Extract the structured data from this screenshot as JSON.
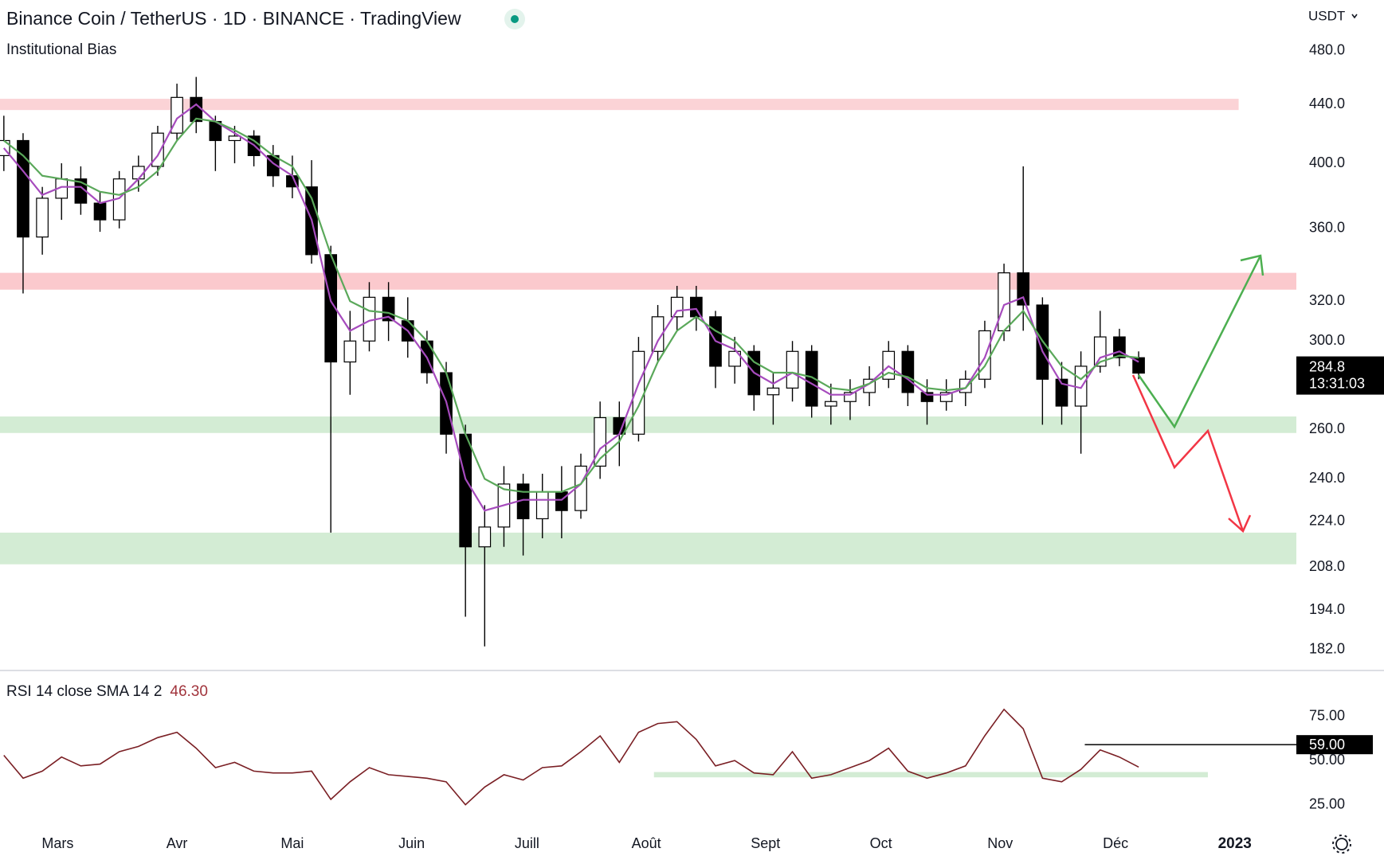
{
  "chart_data": [
    {
      "type": "candlestick",
      "title": "Binance Coin / TetherUS · 1D · BINANCE · TradingView",
      "subtitle": "Institutional Bias",
      "currency": "USDT",
      "log_scale": true,
      "x": [
        1,
        6,
        11,
        16,
        21,
        26,
        31,
        36,
        41,
        46,
        51,
        56,
        61,
        66,
        71,
        76,
        81,
        86,
        91,
        96,
        101,
        106,
        111,
        116,
        121,
        126,
        131,
        136,
        141,
        146,
        151,
        156,
        161,
        166,
        171,
        176,
        181,
        186,
        191,
        196,
        201,
        206,
        211,
        216,
        221,
        226,
        231,
        236,
        241,
        246,
        251,
        256,
        261,
        266,
        271,
        276,
        281,
        286,
        291,
        296
      ],
      "open": [
        405,
        415,
        355,
        378,
        390,
        375,
        365,
        390,
        398,
        420,
        445,
        428,
        415,
        418,
        405,
        392,
        385,
        345,
        290,
        300,
        322,
        310,
        300,
        285,
        258,
        215,
        222,
        238,
        225,
        235,
        228,
        245,
        265,
        258,
        295,
        312,
        322,
        312,
        288,
        295,
        275,
        278,
        295,
        270,
        272,
        276,
        282,
        295,
        276,
        272,
        276,
        282,
        305,
        335,
        318,
        282,
        270,
        288,
        302,
        292
      ],
      "high": [
        432,
        420,
        385,
        400,
        398,
        382,
        395,
        405,
        425,
        455,
        460,
        432,
        425,
        422,
        412,
        405,
        402,
        350,
        315,
        330,
        330,
        322,
        305,
        290,
        262,
        230,
        245,
        242,
        242,
        245,
        250,
        272,
        272,
        302,
        318,
        328,
        328,
        315,
        302,
        298,
        285,
        300,
        298,
        280,
        282,
        288,
        300,
        298,
        282,
        282,
        286,
        310,
        340,
        398,
        322,
        290,
        295,
        315,
        306,
        295
      ],
      "low": [
        395,
        324,
        345,
        365,
        368,
        358,
        360,
        382,
        392,
        415,
        420,
        395,
        400,
        398,
        385,
        378,
        340,
        220,
        275,
        295,
        300,
        292,
        280,
        250,
        192,
        183,
        215,
        212,
        218,
        218,
        225,
        240,
        245,
        255,
        290,
        305,
        305,
        278,
        280,
        268,
        262,
        272,
        265,
        262,
        264,
        270,
        278,
        270,
        262,
        268,
        270,
        278,
        300,
        305,
        262,
        262,
        250,
        285,
        288,
        282
      ],
      "close": [
        415,
        355,
        378,
        390,
        375,
        365,
        390,
        398,
        420,
        445,
        428,
        415,
        418,
        405,
        392,
        385,
        345,
        290,
        300,
        322,
        310,
        300,
        285,
        258,
        215,
        222,
        238,
        225,
        235,
        228,
        245,
        265,
        258,
        295,
        312,
        322,
        312,
        288,
        295,
        275,
        278,
        295,
        270,
        272,
        276,
        282,
        295,
        276,
        272,
        276,
        282,
        305,
        335,
        318,
        282,
        270,
        288,
        302,
        292,
        284.8
      ],
      "up_color": "#ffffff",
      "down_color": "#000000",
      "series": [
        {
          "color": "#a64bbd",
          "values": [
            410,
            395,
            380,
            385,
            385,
            375,
            378,
            390,
            405,
            430,
            440,
            428,
            420,
            412,
            400,
            392,
            365,
            320,
            305,
            310,
            312,
            305,
            292,
            272,
            240,
            228,
            230,
            232,
            232,
            232,
            238,
            252,
            258,
            280,
            300,
            315,
            316,
            300,
            296,
            285,
            280,
            285,
            280,
            275,
            275,
            280,
            288,
            282,
            275,
            275,
            278,
            292,
            318,
            322,
            295,
            280,
            278,
            292,
            295,
            290
          ]
        },
        {
          "color": "#5aa85a",
          "values": [
            415,
            405,
            392,
            390,
            388,
            382,
            380,
            385,
            395,
            415,
            430,
            428,
            422,
            415,
            405,
            398,
            378,
            345,
            320,
            315,
            314,
            310,
            300,
            285,
            258,
            240,
            236,
            235,
            235,
            235,
            238,
            248,
            255,
            270,
            290,
            305,
            312,
            305,
            300,
            290,
            285,
            285,
            283,
            278,
            277,
            280,
            285,
            283,
            278,
            277,
            278,
            288,
            305,
            315,
            300,
            288,
            282,
            290,
            293,
            292
          ]
        }
      ],
      "zones": [
        {
          "low": 436,
          "high": 444,
          "color": "#fbd3d6",
          "x_end": 322
        },
        {
          "low": 326,
          "high": 335,
          "color": "#fbc9cd"
        },
        {
          "low": 258.5,
          "high": 265.5,
          "color": "#d3ecd4"
        },
        {
          "low": 209,
          "high": 220,
          "color": "#d3ecd4"
        }
      ],
      "last_price": {
        "value": 284.8,
        "label": "284.8"
      },
      "countdown": "13:31:03",
      "xlim": [
        0,
        337
      ],
      "xticks": [
        {
          "value": 15,
          "label": "Mars"
        },
        {
          "value": 46,
          "label": "Avr"
        },
        {
          "value": 76,
          "label": "Mai"
        },
        {
          "value": 107,
          "label": "Juin"
        },
        {
          "value": 137,
          "label": "Juill"
        },
        {
          "value": 168,
          "label": "Août"
        },
        {
          "value": 199,
          "label": "Sept"
        },
        {
          "value": 229,
          "label": "Oct"
        },
        {
          "value": 260,
          "label": "Nov"
        },
        {
          "value": 290,
          "label": "Déc"
        },
        {
          "value": 321,
          "label": "2023",
          "bold": true
        }
      ],
      "ylim": [
        176,
        521
      ],
      "yticks": [
        {
          "value": 480,
          "label": "480.0"
        },
        {
          "value": 440,
          "label": "440.0"
        },
        {
          "value": 400,
          "label": "400.0"
        },
        {
          "value": 360,
          "label": "360.0"
        },
        {
          "value": 320,
          "label": "320.0"
        },
        {
          "value": 300,
          "label": "300.0"
        },
        {
          "value": 260,
          "label": "260.0"
        },
        {
          "value": 240,
          "label": "240.0"
        },
        {
          "value": 224,
          "label": "224.0"
        },
        {
          "value": 208,
          "label": "208.0"
        },
        {
          "value": 194,
          "label": "194.0"
        },
        {
          "value": 182,
          "label": "182.0"
        }
      ]
    },
    {
      "type": "line",
      "title": "RSI 14 close SMA 14 2",
      "current": {
        "value": 46.3,
        "label": "46.30"
      },
      "x": [
        1,
        6,
        11,
        16,
        21,
        26,
        31,
        36,
        41,
        46,
        51,
        56,
        61,
        66,
        71,
        76,
        81,
        86,
        91,
        96,
        101,
        106,
        111,
        116,
        121,
        126,
        131,
        136,
        141,
        146,
        151,
        156,
        161,
        166,
        171,
        176,
        181,
        186,
        191,
        196,
        201,
        206,
        211,
        216,
        221,
        226,
        231,
        236,
        241,
        246,
        251,
        256,
        261,
        266,
        271,
        276,
        281,
        286,
        291,
        296
      ],
      "series": [
        {
          "color": "#7a1f24",
          "values": [
            53,
            40,
            44,
            52,
            47,
            48,
            55,
            58,
            63,
            66,
            57,
            46,
            49,
            44,
            43,
            43,
            44,
            28,
            38,
            46,
            42,
            41,
            40,
            38,
            25,
            35,
            42,
            39,
            46,
            47,
            55,
            64,
            49,
            66,
            71,
            72,
            62,
            47,
            50,
            43,
            42,
            55,
            40,
            42,
            46,
            50,
            57,
            44,
            40,
            43,
            47,
            64,
            79,
            68,
            40,
            38,
            45,
            56,
            52,
            46.3
          ]
        }
      ],
      "level": {
        "value": 59,
        "label": "59.00",
        "x_start": 282,
        "color": "#000000"
      },
      "band": {
        "low": 40.5,
        "high": 43.5,
        "x_start": 170,
        "x_end": 314,
        "color": "#d3ecd4"
      },
      "xlim": [
        0,
        337
      ],
      "ylim": [
        14,
        101
      ],
      "yticks": [
        {
          "value": 75,
          "label": "75.00"
        },
        {
          "value": 50,
          "label": "50.00"
        },
        {
          "value": 25,
          "label": "25.00"
        }
      ]
    }
  ]
}
